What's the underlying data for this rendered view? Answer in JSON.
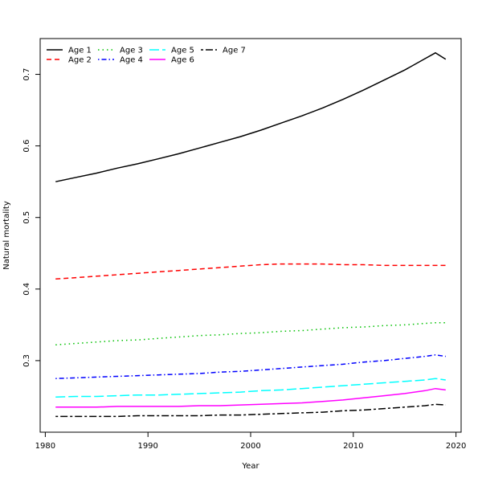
{
  "chart_data": {
    "type": "line",
    "xlabel": "Year",
    "ylabel": "Natural mortality",
    "xlim": [
      1979.5,
      2020.5
    ],
    "ylim": [
      0.2,
      0.75
    ],
    "xticks": [
      1980,
      1990,
      2000,
      2010,
      2020
    ],
    "yticks": [
      0.3,
      0.4,
      0.5,
      0.6,
      0.7
    ],
    "grid": false,
    "legend_position": "top-left",
    "x": [
      1981,
      1983,
      1985,
      1987,
      1989,
      1991,
      1993,
      1995,
      1997,
      1999,
      2001,
      2003,
      2005,
      2007,
      2009,
      2011,
      2013,
      2015,
      2017,
      2018,
      2019
    ],
    "series": [
      {
        "name": "Age 1",
        "color": "#000000",
        "dash": "solid",
        "values": [
          0.55,
          0.556,
          0.562,
          0.569,
          0.575,
          0.582,
          0.589,
          0.597,
          0.605,
          0.613,
          0.622,
          0.632,
          0.642,
          0.653,
          0.665,
          0.678,
          0.692,
          0.706,
          0.722,
          0.73,
          0.721
        ]
      },
      {
        "name": "Age 2",
        "color": "#ff0000",
        "dash": "dashed",
        "values": [
          0.414,
          0.416,
          0.418,
          0.42,
          0.422,
          0.424,
          0.426,
          0.428,
          0.43,
          0.432,
          0.434,
          0.435,
          0.435,
          0.435,
          0.434,
          0.434,
          0.433,
          0.433,
          0.433,
          0.433,
          0.433
        ]
      },
      {
        "name": "Age 3",
        "color": "#00c000",
        "dash": "dotted",
        "values": [
          0.322,
          0.324,
          0.326,
          0.328,
          0.329,
          0.331,
          0.333,
          0.335,
          0.336,
          0.338,
          0.339,
          0.341,
          0.342,
          0.344,
          0.346,
          0.347,
          0.349,
          0.35,
          0.352,
          0.353,
          0.353
        ]
      },
      {
        "name": "Age 4",
        "color": "#0000ff",
        "dash": "dotdash",
        "values": [
          0.275,
          0.276,
          0.277,
          0.278,
          0.279,
          0.28,
          0.281,
          0.282,
          0.284,
          0.285,
          0.287,
          0.289,
          0.291,
          0.293,
          0.295,
          0.298,
          0.3,
          0.303,
          0.306,
          0.308,
          0.306
        ]
      },
      {
        "name": "Age 5",
        "color": "#00ffff",
        "dash": "longdash",
        "values": [
          0.249,
          0.25,
          0.25,
          0.251,
          0.252,
          0.252,
          0.253,
          0.254,
          0.255,
          0.256,
          0.258,
          0.259,
          0.261,
          0.263,
          0.265,
          0.267,
          0.269,
          0.271,
          0.273,
          0.275,
          0.273
        ]
      },
      {
        "name": "Age 6",
        "color": "#ff00ff",
        "dash": "solid",
        "values": [
          0.235,
          0.235,
          0.235,
          0.236,
          0.236,
          0.236,
          0.236,
          0.237,
          0.237,
          0.238,
          0.239,
          0.24,
          0.241,
          0.243,
          0.245,
          0.248,
          0.251,
          0.254,
          0.258,
          0.261,
          0.259
        ]
      },
      {
        "name": "Age 7",
        "color": "#000000",
        "dash": "twodash",
        "values": [
          0.222,
          0.222,
          0.222,
          0.222,
          0.223,
          0.223,
          0.223,
          0.223,
          0.224,
          0.224,
          0.225,
          0.226,
          0.227,
          0.228,
          0.23,
          0.231,
          0.233,
          0.235,
          0.237,
          0.239,
          0.238
        ]
      }
    ]
  }
}
